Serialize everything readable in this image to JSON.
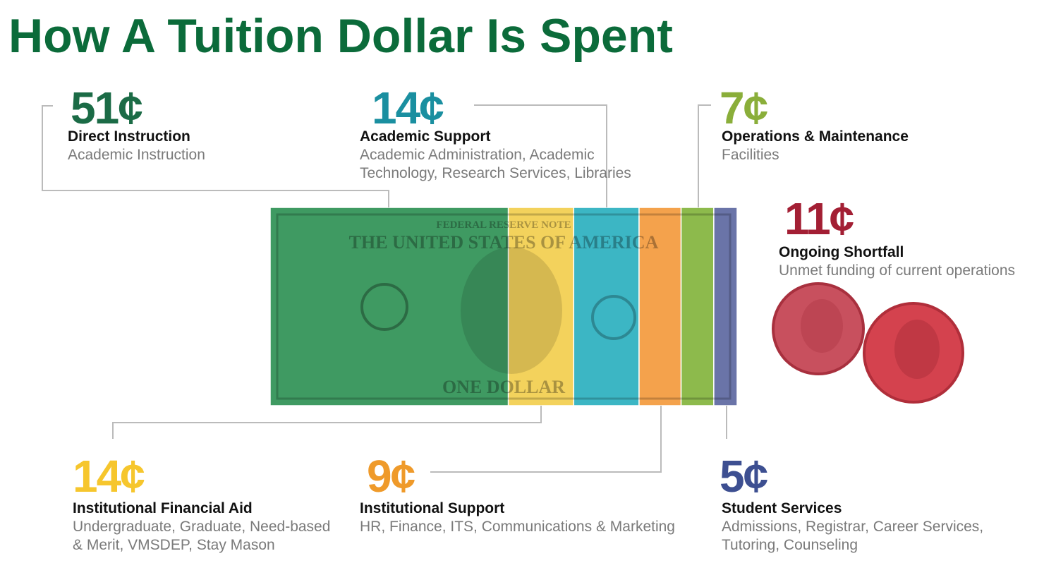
{
  "chart_data": {
    "type": "dollar",
    "title": "How A Tuition Dollar Is Spent",
    "categories": [
      "Direct Instruction",
      "Institutional Financial Aid",
      "Academic Support",
      "Institutional Support",
      "Operations & Maintenance",
      "Student Services"
    ],
    "values": [
      51,
      14,
      14,
      9,
      7,
      5
    ],
    "value_labels": [
      "51¢",
      "14¢",
      "14¢",
      "9¢",
      "7¢",
      "5¢"
    ],
    "descriptions": [
      [
        "Academic Instruction"
      ],
      [
        "Undergraduate, Graduate, Need-based",
        "& Merit, VMSDEP, Stay Mason"
      ],
      [
        "Academic Administration, Academic",
        "Technology, Research Services, Libraries"
      ],
      [
        "HR, Finance, ITS, Communications & Marketing"
      ],
      [
        "Facilities"
      ],
      [
        "Admissions, Registrar, Career Services,",
        "Tutoring, Counseling"
      ]
    ],
    "colors": [
      "#3f9a62",
      "#f3d25c",
      "#3cb6c4",
      "#f4a24c",
      "#8dba4c",
      "#6a74a8"
    ],
    "label_colors": [
      "#1b6b46",
      "#f6c62d",
      "#1a8fa0",
      "#ef9a2a",
      "#8aae3a",
      "#3d4f91"
    ],
    "shortfall": {
      "name": "Ongoing Shortfall",
      "value": 11,
      "value_label": "11¢",
      "description": "Unmet funding of current operations",
      "color": "#a31f34"
    },
    "bill": [
      "FEDERAL RESERVE NOTE",
      "THE UNITED STATES OF AMERICA",
      "ONE DOLLAR"
    ]
  }
}
